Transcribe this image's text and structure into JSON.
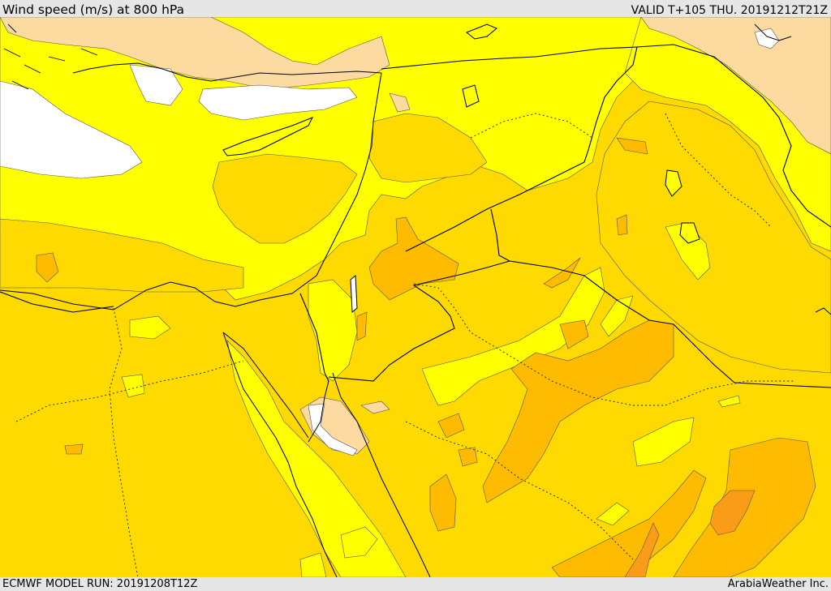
{
  "header": {
    "title": "Wind speed (m/s) at 800 hPa",
    "valid_time": "VALID T+105 THU. 20191212T21Z"
  },
  "footer": {
    "model_run": "ECMWF MODEL RUN: 20191208T12Z",
    "credit": "ArabiaWeather Inc."
  },
  "colors": {
    "white_zone": "#ffffff",
    "tan_zone": "#fcdaa0",
    "yellow_zone": "#ffff00",
    "gold_zone": "#ffda00",
    "amber_zone": "#ffbb00",
    "orange_zone": "#fb9c18",
    "deep_orange_zone": "#f88a10",
    "border_line": "#000000"
  }
}
